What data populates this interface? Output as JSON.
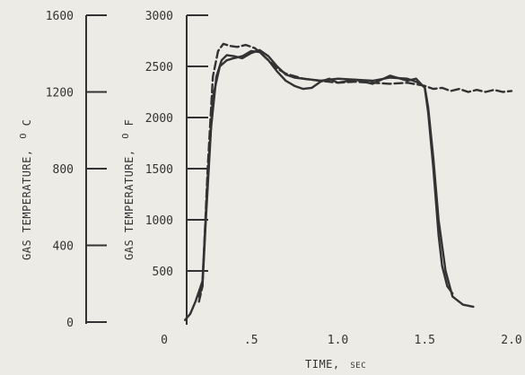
{
  "chart_data": {
    "type": "line",
    "xlabel_main": "TIME,",
    "xlabel_unit": "SEC",
    "ylabel_c_main": "GAS TEMPERATURE,",
    "ylabel_c_sup": "O",
    "ylabel_c_sub": "C",
    "ylabel_f_main": "GAS TEMPERATURE,",
    "ylabel_f_sup": "O",
    "ylabel_f_sub": "F",
    "xlim": [
      0,
      2.0
    ],
    "ylim_f": [
      0,
      3000
    ],
    "ylim_c": [
      0,
      1600
    ],
    "x_ticks": [
      0,
      0.5,
      1.0,
      1.5,
      2.0
    ],
    "x_tick_labels": [
      "0",
      ".5",
      "1.0",
      "1.5",
      "2.0"
    ],
    "y_ticks_f": [
      500,
      1000,
      1500,
      2000,
      2500,
      3000
    ],
    "y_tick_labels_f": [
      "500",
      "1000",
      "1500",
      "2000",
      "2500",
      "3000"
    ],
    "y_ticks_c": [
      0,
      400,
      800,
      1200,
      1600
    ],
    "y_tick_labels_c": [
      "0",
      "400",
      "800",
      "1200",
      "1600"
    ],
    "grid": false,
    "legend": "none",
    "series": [
      {
        "style": "dashed",
        "x": [
          0.2,
          0.22,
          0.25,
          0.28,
          0.31,
          0.34,
          0.38,
          0.42,
          0.47,
          0.52,
          0.55,
          0.6,
          0.65,
          0.7,
          0.8,
          0.9,
          1.0,
          1.1,
          1.2,
          1.3,
          1.4,
          1.5,
          1.55,
          1.6,
          1.65,
          1.7,
          1.75,
          1.8,
          1.85,
          1.9,
          1.95,
          2.0
        ],
        "y": [
          200,
          350,
          1500,
          2400,
          2650,
          2720,
          2700,
          2690,
          2710,
          2680,
          2640,
          2560,
          2480,
          2430,
          2380,
          2360,
          2340,
          2350,
          2340,
          2330,
          2340,
          2310,
          2280,
          2290,
          2260,
          2280,
          2250,
          2270,
          2250,
          2270,
          2250,
          2260
        ]
      },
      {
        "style": "solid",
        "x": [
          0.12,
          0.15,
          0.18,
          0.2,
          0.22,
          0.25,
          0.28,
          0.32,
          0.36,
          0.4,
          0.45,
          0.5,
          0.55,
          0.6,
          0.65,
          0.7,
          0.75,
          0.8,
          0.85,
          0.9,
          0.95,
          1.0,
          1.1,
          1.2,
          1.3,
          1.4,
          1.45,
          1.5,
          1.52,
          1.55,
          1.58,
          1.62,
          1.66,
          1.72,
          1.78
        ],
        "y": [
          20,
          80,
          200,
          300,
          400,
          1400,
          2200,
          2500,
          2560,
          2580,
          2600,
          2650,
          2640,
          2560,
          2450,
          2360,
          2310,
          2280,
          2290,
          2350,
          2380,
          2340,
          2370,
          2360,
          2390,
          2380,
          2350,
          2300,
          2100,
          1600,
          1000,
          500,
          250,
          170,
          150
        ]
      },
      {
        "style": "solid",
        "x": [
          0.2,
          0.22,
          0.24,
          0.27,
          0.3,
          0.33,
          0.36,
          0.4,
          0.45,
          0.5,
          0.55,
          0.6,
          0.65,
          0.7,
          0.75,
          0.8,
          0.85,
          0.9,
          0.95,
          1.0,
          1.1,
          1.2,
          1.3,
          1.4,
          1.45,
          1.5,
          1.52,
          1.55,
          1.58,
          1.6,
          1.63,
          1.66
        ],
        "y": [
          250,
          350,
          1000,
          1900,
          2400,
          2560,
          2610,
          2600,
          2580,
          2630,
          2660,
          2600,
          2500,
          2420,
          2390,
          2380,
          2370,
          2360,
          2370,
          2380,
          2370,
          2330,
          2410,
          2360,
          2380,
          2290,
          2050,
          1500,
          850,
          550,
          350,
          280
        ]
      }
    ]
  }
}
